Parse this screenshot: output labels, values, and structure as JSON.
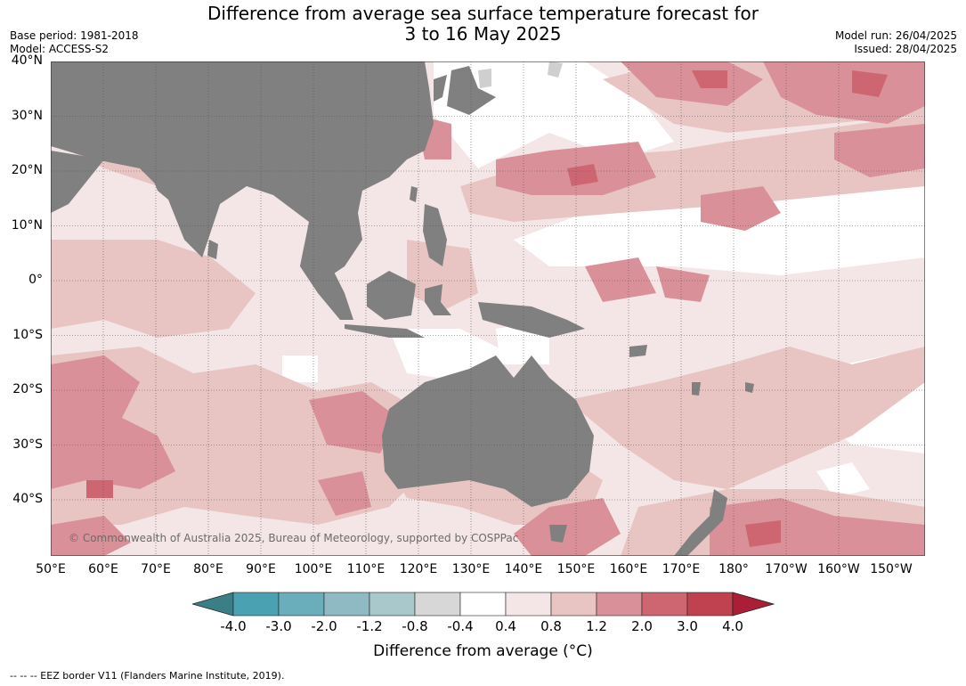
{
  "title": {
    "line1": "Difference from average sea surface temperature forecast for",
    "line2": "3 to 16 May 2025"
  },
  "meta_left": {
    "base_period": "Base period: 1981-2018",
    "model": "Model: ACCESS-S2"
  },
  "meta_right": {
    "model_run": "Model run: 26/04/2025",
    "issued": "Issued: 28/04/2025"
  },
  "lat_labels": [
    "40°N",
    "30°N",
    "20°N",
    "10°N",
    "0°",
    "10°S",
    "20°S",
    "30°S",
    "40°S"
  ],
  "lon_labels": [
    "50°E",
    "60°E",
    "70°E",
    "80°E",
    "90°E",
    "100°E",
    "110°E",
    "120°E",
    "130°E",
    "140°E",
    "150°E",
    "160°E",
    "170°E",
    "180°",
    "170°W",
    "160°W",
    "150°W"
  ],
  "copyright": "© Commonwealth of Australia 2025, Bureau of Meteorology, supported by COSPPac",
  "colorbar": {
    "ticks": [
      "-4.0",
      "-3.0",
      "-2.0",
      "-1.2",
      "-0.8",
      "-0.4",
      "0.4",
      "0.8",
      "1.2",
      "2.0",
      "3.0",
      "4.0"
    ],
    "colors": [
      "#3b7f86",
      "#4aa1b1",
      "#6aadbb",
      "#8fbac4",
      "#a8c8cc",
      "#d7d7d7",
      "#ffffff",
      "#f4e6e6",
      "#e8c4c3",
      "#d99098",
      "#cd6670",
      "#c04150",
      "#aa1f35"
    ],
    "label": "Difference from average (°C)"
  },
  "map_colors": {
    "land": "#808080",
    "ice": "#cfcfcf",
    "white": "#ffffff",
    "light": "#f4e6e6",
    "medium": "#e8c4c3",
    "strong": "#d99098",
    "stronger": "#cd6670"
  },
  "footnote": "--  --  -- EEZ border V11 (Flanders Marine Institute, 2019)."
}
